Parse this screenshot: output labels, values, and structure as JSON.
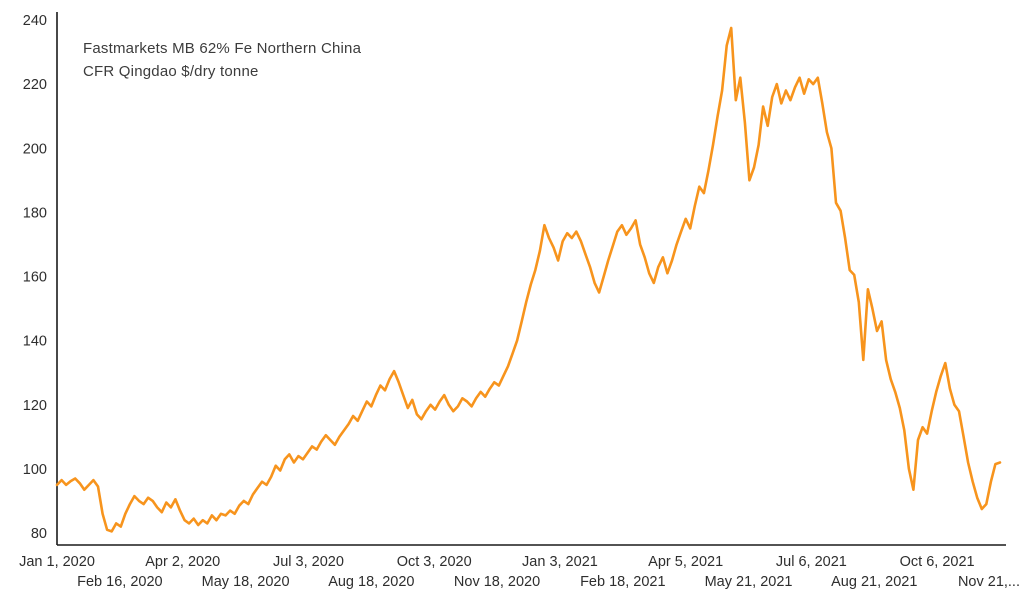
{
  "chart_data": {
    "type": "line",
    "title": "",
    "annotation_line1": "Fastmarkets MB 62% Fe Northern China",
    "annotation_line2": "CFR Qingdao $/dry tonne",
    "series_name": "Fastmarkets MB 62% Fe Northern China CFR Qingdao $/dry tonne",
    "line_color": "#F7941D",
    "axis_color": "#1a1a1a",
    "grid": false,
    "legend_position": "none",
    "ylim": [
      80,
      240
    ],
    "y_ticks": [
      80,
      100,
      120,
      140,
      160,
      180,
      200,
      220,
      240
    ],
    "x_tick_labels": [
      "Jan 1, 2020",
      "Feb 16, 2020",
      "Apr 2, 2020",
      "May 18, 2020",
      "Jul 3, 2020",
      "Aug 18, 2020",
      "Oct 3, 2020",
      "Nov 18, 2020",
      "Jan 3, 2021",
      "Feb 18, 2021",
      "Apr 5, 2021",
      "May 21, 2021",
      "Jul 6, 2021",
      "Aug 21, 2021",
      "Oct 6, 2021",
      "Nov 21,..."
    ],
    "x_tick_stagger_rows": 2,
    "values": [
      95,
      96.5,
      95,
      96.2,
      97,
      95.5,
      93.5,
      95,
      96.5,
      94.5,
      86,
      81,
      80.5,
      83,
      82,
      86,
      89,
      91.5,
      90,
      89,
      91,
      90,
      88,
      86.5,
      89.5,
      88,
      90.5,
      87,
      84,
      83,
      84.5,
      82.5,
      84,
      83,
      85.5,
      84,
      86,
      85.5,
      87,
      86,
      88.5,
      90,
      89,
      92,
      94,
      96,
      95,
      97.5,
      101,
      99.5,
      103,
      104.5,
      102,
      104,
      103,
      105,
      107,
      106,
      108.5,
      110.5,
      109,
      107.5,
      110,
      112,
      114,
      116.5,
      115,
      118,
      121,
      119.5,
      123,
      126,
      124.5,
      128,
      130.5,
      127,
      123,
      119,
      121.5,
      117,
      115.5,
      118,
      120,
      118.5,
      121,
      123,
      120,
      118,
      119.5,
      122,
      121,
      119.5,
      122,
      124,
      122.5,
      125,
      127,
      126,
      129,
      132,
      136,
      140,
      146,
      152,
      157.5,
      162,
      168,
      176,
      172,
      169,
      165,
      171,
      173.5,
      172,
      174,
      171,
      167,
      163,
      158,
      155,
      160,
      165,
      169.5,
      174,
      176,
      173,
      175,
      177.5,
      170,
      166,
      161,
      158,
      163,
      166,
      161,
      165,
      170,
      174,
      178,
      175,
      182,
      188,
      186,
      193,
      201,
      210,
      218,
      232,
      237.5,
      215,
      222,
      208,
      190,
      194,
      201,
      213,
      207,
      216,
      220,
      214,
      218,
      215,
      219,
      222,
      217,
      221.5,
      220,
      222,
      214,
      205,
      200,
      183,
      180.5,
      172,
      162,
      160.5,
      152,
      134,
      156,
      150,
      143,
      146,
      134,
      128,
      124,
      119,
      112,
      100,
      93.5,
      109,
      113,
      111,
      118,
      124,
      129,
      133,
      125,
      120,
      118,
      110,
      102,
      96,
      91,
      87.5,
      89,
      96,
      101.5,
      102
    ]
  }
}
